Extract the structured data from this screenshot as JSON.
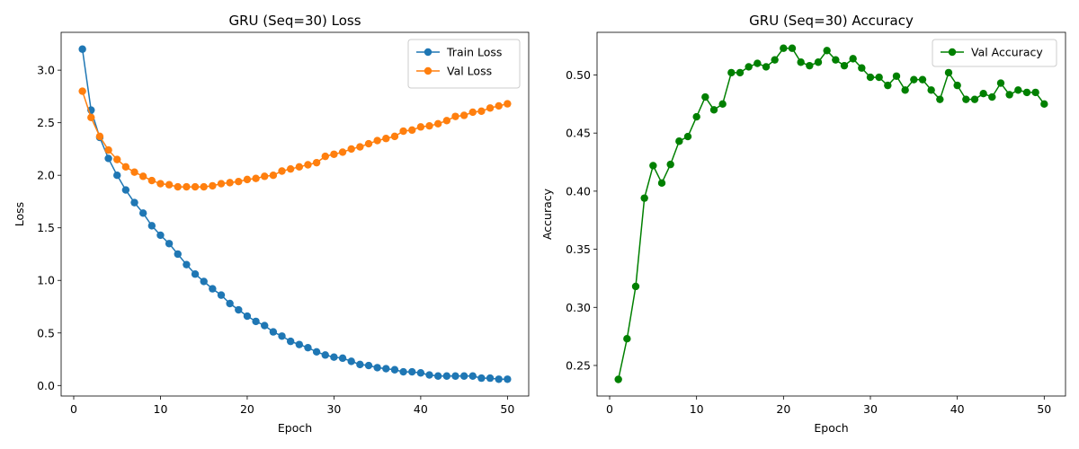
{
  "chart_data": [
    {
      "type": "line",
      "title": "GRU (Seq=30) Loss",
      "xlabel": "Epoch",
      "ylabel": "Loss",
      "xlim": [
        -1.45,
        52.45
      ],
      "ylim": [
        -0.1,
        3.36
      ],
      "xticks": [
        0,
        10,
        20,
        30,
        40,
        50
      ],
      "xtick_labels": [
        "0",
        "10",
        "20",
        "30",
        "40",
        "50"
      ],
      "yticks": [
        0.0,
        0.5,
        1.0,
        1.5,
        2.0,
        2.5,
        3.0
      ],
      "ytick_labels": [
        "0.0",
        "0.5",
        "1.0",
        "1.5",
        "2.0",
        "2.5",
        "3.0"
      ],
      "grid": false,
      "legend_position": "top-right",
      "x": [
        1,
        2,
        3,
        4,
        5,
        6,
        7,
        8,
        9,
        10,
        11,
        12,
        13,
        14,
        15,
        16,
        17,
        18,
        19,
        20,
        21,
        22,
        23,
        24,
        25,
        26,
        27,
        28,
        29,
        30,
        31,
        32,
        33,
        34,
        35,
        36,
        37,
        38,
        39,
        40,
        41,
        42,
        43,
        44,
        45,
        46,
        47,
        48,
        49,
        50
      ],
      "series": [
        {
          "name": "Train Loss",
          "color": "#1f77b4",
          "values": [
            3.2,
            2.62,
            2.36,
            2.16,
            2.0,
            1.86,
            1.74,
            1.64,
            1.52,
            1.43,
            1.35,
            1.25,
            1.15,
            1.06,
            0.99,
            0.92,
            0.86,
            0.78,
            0.72,
            0.66,
            0.61,
            0.57,
            0.51,
            0.47,
            0.42,
            0.39,
            0.36,
            0.32,
            0.29,
            0.27,
            0.26,
            0.23,
            0.2,
            0.19,
            0.17,
            0.16,
            0.15,
            0.13,
            0.13,
            0.12,
            0.1,
            0.09,
            0.09,
            0.09,
            0.09,
            0.09,
            0.07,
            0.07,
            0.06,
            0.06
          ]
        },
        {
          "name": "Val Loss",
          "color": "#ff7f0e",
          "values": [
            2.8,
            2.55,
            2.37,
            2.24,
            2.15,
            2.08,
            2.03,
            1.99,
            1.95,
            1.92,
            1.91,
            1.89,
            1.89,
            1.89,
            1.89,
            1.9,
            1.92,
            1.93,
            1.94,
            1.96,
            1.97,
            1.99,
            2.0,
            2.04,
            2.06,
            2.08,
            2.1,
            2.12,
            2.18,
            2.2,
            2.22,
            2.25,
            2.27,
            2.3,
            2.33,
            2.35,
            2.37,
            2.42,
            2.43,
            2.46,
            2.47,
            2.49,
            2.52,
            2.56,
            2.57,
            2.6,
            2.61,
            2.64,
            2.66,
            2.68
          ]
        }
      ]
    },
    {
      "type": "line",
      "title": "GRU (Seq=30) Accuracy",
      "xlabel": "Epoch",
      "ylabel": "Accuracy",
      "xlim": [
        -1.45,
        52.45
      ],
      "ylim": [
        0.2237,
        0.5367
      ],
      "xticks": [
        0,
        10,
        20,
        30,
        40,
        50
      ],
      "xtick_labels": [
        "0",
        "10",
        "20",
        "30",
        "40",
        "50"
      ],
      "yticks": [
        0.25,
        0.3,
        0.35,
        0.4,
        0.45,
        0.5
      ],
      "ytick_labels": [
        "0.25",
        "0.30",
        "0.35",
        "0.40",
        "0.45",
        "0.50"
      ],
      "grid": false,
      "legend_position": "top-right",
      "x": [
        1,
        2,
        3,
        4,
        5,
        6,
        7,
        8,
        9,
        10,
        11,
        12,
        13,
        14,
        15,
        16,
        17,
        18,
        19,
        20,
        21,
        22,
        23,
        24,
        25,
        26,
        27,
        28,
        29,
        30,
        31,
        32,
        33,
        34,
        35,
        36,
        37,
        38,
        39,
        40,
        41,
        42,
        43,
        44,
        45,
        46,
        47,
        48,
        49,
        50
      ],
      "series": [
        {
          "name": "Val Accuracy",
          "color": "#008000",
          "values": [
            0.238,
            0.273,
            0.318,
            0.394,
            0.422,
            0.407,
            0.423,
            0.443,
            0.447,
            0.464,
            0.481,
            0.47,
            0.475,
            0.502,
            0.502,
            0.507,
            0.51,
            0.507,
            0.513,
            0.523,
            0.523,
            0.511,
            0.508,
            0.511,
            0.521,
            0.513,
            0.508,
            0.514,
            0.506,
            0.498,
            0.498,
            0.491,
            0.499,
            0.487,
            0.496,
            0.496,
            0.487,
            0.479,
            0.502,
            0.491,
            0.479,
            0.479,
            0.484,
            0.481,
            0.493,
            0.483,
            0.487,
            0.485,
            0.485,
            0.475
          ]
        }
      ]
    }
  ]
}
